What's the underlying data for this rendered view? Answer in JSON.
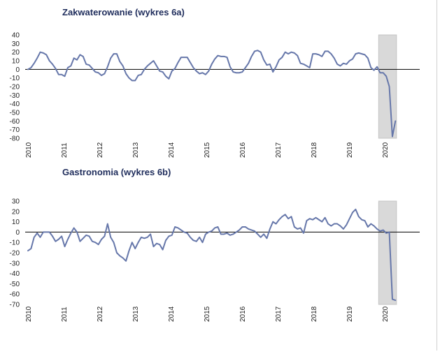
{
  "colors": {
    "line": "#6677aa",
    "title": "#1f2d5c",
    "shade": "#d9d9d9",
    "zero": "#000000"
  },
  "chart_data": [
    {
      "type": "line",
      "title": "Zakwaterowanie (wykres 6a)",
      "xlabel": "",
      "ylabel": "",
      "ylim": [
        -80,
        40
      ],
      "yticks": [
        40,
        30,
        20,
        10,
        0,
        -10,
        -20,
        -30,
        -40,
        -50,
        -60,
        -70,
        -80
      ],
      "x_ticks": [
        "2010",
        "2011",
        "2012",
        "2013",
        "2014",
        "2015",
        "2016",
        "2017",
        "2018",
        "2019",
        "2020"
      ],
      "xlim": [
        2010,
        2020.3
      ],
      "grid": false,
      "shaded_region": [
        2019.83,
        2020.33
      ],
      "series": [
        {
          "values": [
            0,
            2,
            7,
            13,
            20,
            19,
            17,
            10,
            6,
            1,
            -6,
            -6,
            -8,
            2,
            4,
            13,
            11,
            17,
            15,
            6,
            5,
            1,
            -3,
            -4,
            -7,
            -5,
            3,
            13,
            18,
            18,
            9,
            4,
            -5,
            -10,
            -13,
            -13,
            -7,
            -6,
            0,
            4,
            7,
            10,
            4,
            -2,
            -3,
            -8,
            -11,
            -2,
            1,
            8,
            14,
            14,
            14,
            8,
            2,
            -2,
            -5,
            -4,
            -6,
            -2,
            6,
            12,
            16,
            15,
            15,
            14,
            3,
            -3,
            -4,
            -4,
            -3,
            2,
            7,
            15,
            21,
            22,
            20,
            11,
            5,
            6,
            -3,
            3,
            11,
            14,
            20,
            18,
            20,
            19,
            16,
            7,
            6,
            4,
            2,
            18,
            18,
            17,
            15,
            21,
            21,
            18,
            13,
            6,
            4,
            7,
            6,
            10,
            12,
            18,
            19,
            18,
            17,
            13,
            2,
            -1,
            3,
            -4,
            -4,
            -8,
            -20,
            -78,
            -60
          ]
        }
      ]
    },
    {
      "type": "line",
      "title": "Gastronomia (wykres 6b)",
      "xlabel": "",
      "ylabel": "",
      "ylim": [
        -70,
        30
      ],
      "yticks": [
        30,
        20,
        10,
        0,
        -10,
        -20,
        -30,
        -40,
        -50,
        -60,
        -70
      ],
      "x_ticks": [
        "2010",
        "2011",
        "2012",
        "2013",
        "2014",
        "2015",
        "2016",
        "2017",
        "2018",
        "2019",
        "2020"
      ],
      "xlim": [
        2010,
        2020.3
      ],
      "grid": false,
      "shaded_region": [
        2019.83,
        2020.33
      ],
      "series": [
        {
          "values": [
            -18,
            -16,
            -5,
            -1,
            -5,
            0,
            0,
            0,
            -4,
            -9,
            -7,
            -4,
            -14,
            -7,
            -1,
            4,
            0,
            -9,
            -6,
            -3,
            -4,
            -9,
            -10,
            -12,
            -7,
            -4,
            8,
            -5,
            -10,
            -20,
            -23,
            -25,
            -28,
            -18,
            -10,
            -16,
            -10,
            -5,
            -6,
            -5,
            -2,
            -14,
            -11,
            -12,
            -17,
            -8,
            -4,
            -3,
            5,
            4,
            2,
            0,
            -1,
            -5,
            -8,
            -9,
            -5,
            -10,
            -2,
            0,
            1,
            4,
            5,
            -2,
            -2,
            -1,
            -3,
            -2,
            0,
            2,
            5,
            5,
            3,
            2,
            1,
            -2,
            -5,
            -2,
            -6,
            3,
            10,
            8,
            12,
            15,
            17,
            13,
            15,
            5,
            3,
            4,
            -1,
            11,
            13,
            12,
            14,
            12,
            10,
            14,
            8,
            6,
            8,
            8,
            6,
            3,
            7,
            13,
            19,
            22,
            15,
            12,
            11,
            5,
            8,
            6,
            3,
            1,
            2,
            -1,
            0,
            -65,
            -66
          ]
        }
      ]
    }
  ]
}
